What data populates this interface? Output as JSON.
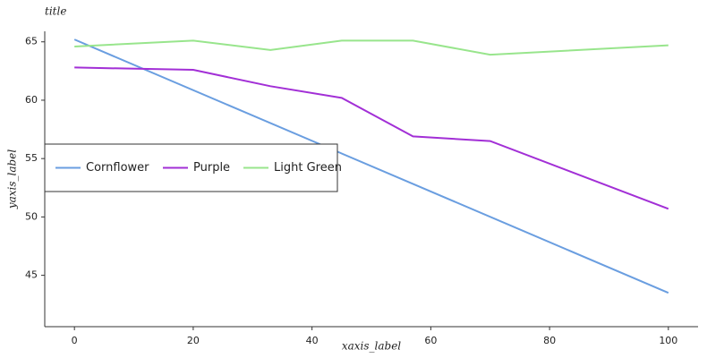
{
  "chart_data": {
    "type": "line",
    "title": "title",
    "x": [
      0,
      20,
      33,
      45,
      57,
      70,
      100
    ],
    "series": [
      {
        "name": "Cornflower",
        "color": "#6a9ee0",
        "values": [
          65.2,
          null,
          null,
          null,
          null,
          null,
          43.5
        ]
      },
      {
        "name": "Purple",
        "color": "#a22fd6",
        "values": [
          62.8,
          62.6,
          61.2,
          60.2,
          56.9,
          56.5,
          50.7
        ]
      },
      {
        "name": "Light Green",
        "color": "#98e58c",
        "values": [
          64.6,
          65.1,
          64.3,
          65.1,
          65.1,
          63.9,
          64.7
        ]
      }
    ],
    "xlim": [
      -5,
      105
    ],
    "xticks": [
      0,
      20,
      40,
      60,
      80,
      100
    ],
    "ylim": [
      40.6,
      65.9
    ],
    "yticks": [
      45,
      50,
      55,
      60,
      65
    ],
    "xlabel": "xaxis_label",
    "ylabel": "yaxis_label",
    "legend": "lower left",
    "grid": false
  }
}
